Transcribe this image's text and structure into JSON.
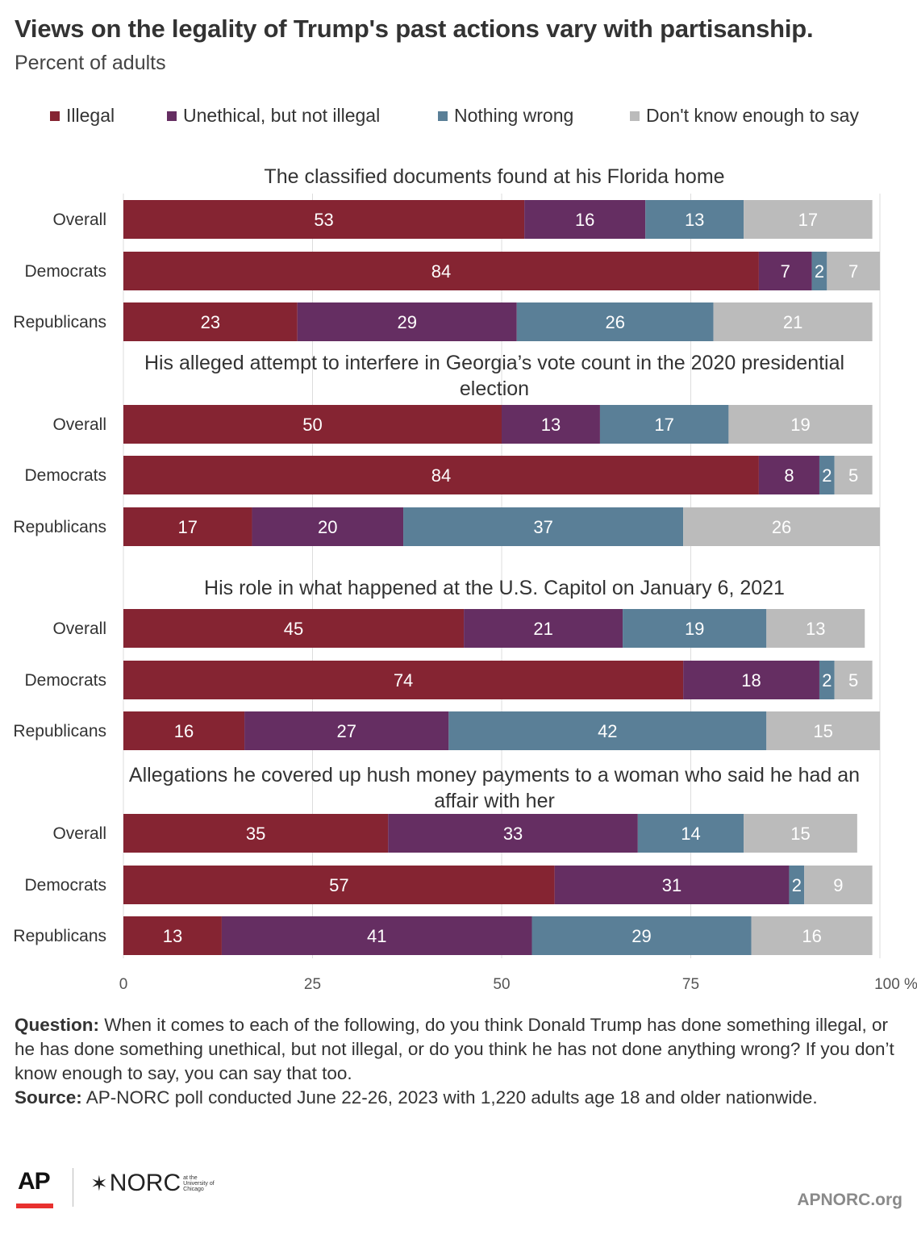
{
  "header": {
    "title": "Views on the legality of Trump's past actions vary with partisanship.",
    "subtitle": "Percent of adults"
  },
  "legend": [
    {
      "label": "Illegal",
      "color": "#852432"
    },
    {
      "label": "Unethical, but not illegal",
      "color": "#652e62"
    },
    {
      "label": "Nothing wrong",
      "color": "#5a7f97"
    },
    {
      "label": "Don't know enough to say",
      "color": "#bbbbbb"
    }
  ],
  "chart_data": {
    "type": "bar",
    "orientation": "horizontal",
    "stacked": true,
    "xlim": [
      0,
      100
    ],
    "xticks": [
      "0",
      "25",
      "50",
      "75",
      "100 %"
    ],
    "grid": true,
    "legend_position": "top",
    "series": [
      {
        "name": "Illegal",
        "color": "#852432"
      },
      {
        "name": "Unethical, but not illegal",
        "color": "#652e62"
      },
      {
        "name": "Nothing wrong",
        "color": "#5a7f97"
      },
      {
        "name": "Don't know enough to say",
        "color": "#bbbbbb"
      }
    ],
    "panels": [
      {
        "title": "The classified documents found at his Florida home",
        "groups": [
          {
            "label": "Overall",
            "values": [
              53,
              16,
              13,
              17
            ]
          },
          {
            "label": "Democrats",
            "values": [
              84,
              7,
              2,
              7
            ]
          },
          {
            "label": "Republicans",
            "values": [
              23,
              29,
              26,
              21
            ]
          }
        ]
      },
      {
        "title": "His alleged attempt to interfere in Georgia’s vote count in the 2020 presidential election",
        "groups": [
          {
            "label": "Overall",
            "values": [
              50,
              13,
              17,
              19
            ]
          },
          {
            "label": "Democrats",
            "values": [
              84,
              8,
              2,
              5
            ]
          },
          {
            "label": "Republicans",
            "values": [
              17,
              20,
              37,
              26
            ]
          }
        ]
      },
      {
        "title": "His role in what happened at the U.S. Capitol on January 6, 2021",
        "groups": [
          {
            "label": "Overall",
            "values": [
              45,
              21,
              19,
              13
            ]
          },
          {
            "label": "Democrats",
            "values": [
              74,
              18,
              2,
              5
            ]
          },
          {
            "label": "Republicans",
            "values": [
              16,
              27,
              42,
              15
            ]
          }
        ]
      },
      {
        "title": "Allegations he covered up hush money payments to a woman who said he had an affair with her",
        "groups": [
          {
            "label": "Overall",
            "values": [
              35,
              33,
              14,
              15
            ]
          },
          {
            "label": "Democrats",
            "values": [
              57,
              31,
              2,
              9
            ]
          },
          {
            "label": "Republicans",
            "values": [
              13,
              41,
              29,
              16
            ]
          }
        ]
      }
    ]
  },
  "notes": {
    "question_label": "Question:",
    "question_text": " When it comes to each of the following, do you think Donald Trump has done something illegal, or he has done something unethical, but not illegal, or do you think he has not done anything wrong? If you don’t know enough to say, you can say that too.",
    "source_label": "Source:",
    "source_text": " AP-NORC poll conducted June 22-26, 2023 with 1,220 adults age 18 and older nationwide."
  },
  "footer": {
    "ap_logo": "AP",
    "norc_logo": "NORC",
    "norc_sub": "at the University of Chicago",
    "site": "APNORC.org"
  }
}
